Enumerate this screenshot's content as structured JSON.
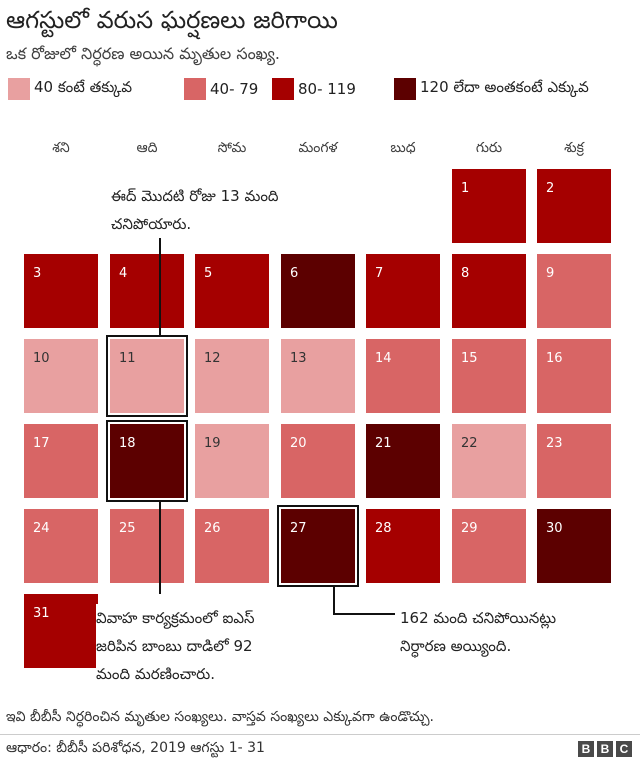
{
  "title": "ఆగస్టులో వరుస ఘర్షణలు జరిగాయి",
  "subtitle": "ఒక రోజులో నిర్ధరణ అయిన మృతుల సంఖ్య.",
  "legend": [
    {
      "label": "40 కంటే తక్కువ",
      "color": "#e8a0a0"
    },
    {
      "label": "40- 79",
      "color": "#d86565"
    },
    {
      "label": "80- 119",
      "color": "#a50000"
    },
    {
      "label": "120 లేదా అంతకంటే ఎక్కువ",
      "color": "#5c0000"
    }
  ],
  "days": [
    "శని",
    "ఆది",
    "సోమ",
    "మంగళ",
    "బుధ",
    "గురు",
    "శుక్ర"
  ],
  "chart_data": {
    "type": "heatmap",
    "bins": [
      "40 కంటే తక్కువ",
      "40- 79",
      "80- 119",
      "120 లేదా అంతకంటే ఎక్కువ"
    ],
    "date_range": "2019 ఆగస్టు 1- 31",
    "first_day_column": 5,
    "dates": [
      {
        "date": 1,
        "bin": 2
      },
      {
        "date": 2,
        "bin": 2
      },
      {
        "date": 3,
        "bin": 2
      },
      {
        "date": 4,
        "bin": 2
      },
      {
        "date": 5,
        "bin": 2
      },
      {
        "date": 6,
        "bin": 3
      },
      {
        "date": 7,
        "bin": 2
      },
      {
        "date": 8,
        "bin": 2
      },
      {
        "date": 9,
        "bin": 1
      },
      {
        "date": 10,
        "bin": 0
      },
      {
        "date": 11,
        "bin": 0
      },
      {
        "date": 12,
        "bin": 0
      },
      {
        "date": 13,
        "bin": 0
      },
      {
        "date": 14,
        "bin": 1
      },
      {
        "date": 15,
        "bin": 1
      },
      {
        "date": 16,
        "bin": 1
      },
      {
        "date": 17,
        "bin": 1
      },
      {
        "date": 18,
        "bin": 3
      },
      {
        "date": 19,
        "bin": 0
      },
      {
        "date": 20,
        "bin": 1
      },
      {
        "date": 21,
        "bin": 3
      },
      {
        "date": 22,
        "bin": 0
      },
      {
        "date": 23,
        "bin": 1
      },
      {
        "date": 24,
        "bin": 1
      },
      {
        "date": 25,
        "bin": 1
      },
      {
        "date": 26,
        "bin": 1
      },
      {
        "date": 27,
        "bin": 3
      },
      {
        "date": 28,
        "bin": 2
      },
      {
        "date": 29,
        "bin": 1
      },
      {
        "date": 30,
        "bin": 3
      },
      {
        "date": 31,
        "bin": 2
      }
    ],
    "highlighted": [
      11,
      18,
      27
    ],
    "annotations": [
      {
        "date": 11,
        "lines": [
          "ఈద్ మొదటి రోజు 13 మంది",
          "చనిపోయారు."
        ]
      },
      {
        "date": 18,
        "lines": [
          "వివాహ కార్యక్రమంలో ఐఎస్",
          "జరిపిన బాంబు దాడిలో 92",
          "మంది మరణించారు."
        ]
      },
      {
        "date": 27,
        "lines": [
          "162 మంది చనిపోయినట్లు",
          "నిర్ధారణ అయ్యింది."
        ]
      }
    ]
  },
  "footnote": "ఇవి బీబీసీ నిర్ధరించిన మృతుల సంఖ్యలు. వాస్తవ సంఖ్యలు ఎక్కువగా ఉండొచ్చు.",
  "source": "ఆధారం: బీబీసీ పరిశోధన, 2019 ఆగస్టు 1- 31",
  "logo_letters": [
    "B",
    "B",
    "C"
  ]
}
